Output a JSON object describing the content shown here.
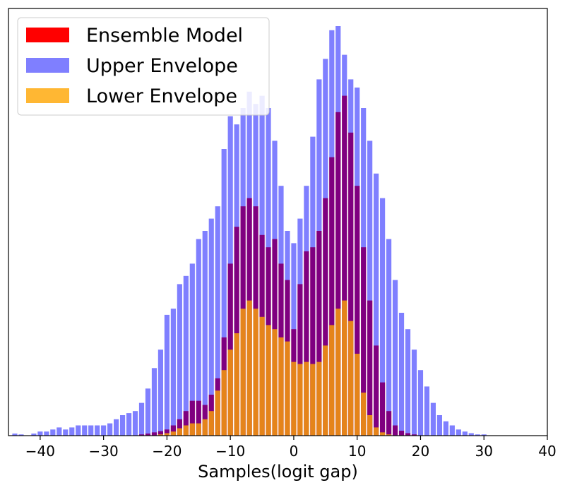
{
  "chart_data": {
    "type": "bar",
    "xlabel": "Samples(logit gap)",
    "ylabel": "",
    "xlim": [
      -45,
      40
    ],
    "ylim": [
      0,
      1000
    ],
    "xticks": [
      -40,
      -30,
      -20,
      -10,
      0,
      10,
      20,
      30,
      40
    ],
    "xtick_labels": [
      "−40",
      "−30",
      "−20",
      "−10",
      "0",
      "10",
      "20",
      "30",
      "40"
    ],
    "grid": false,
    "legend_position": "upper-left",
    "bin_width": 1,
    "x": [
      -44,
      -43,
      -42,
      -41,
      -40,
      -39,
      -38,
      -37,
      -36,
      -35,
      -34,
      -33,
      -32,
      -31,
      -30,
      -29,
      -28,
      -27,
      -26,
      -25,
      -24,
      -23,
      -22,
      -21,
      -20,
      -19,
      -18,
      -17,
      -16,
      -15,
      -14,
      -13,
      -12,
      -11,
      -10,
      -9,
      -8,
      -7,
      -6,
      -5,
      -4,
      -3,
      -2,
      -1,
      0,
      1,
      2,
      3,
      4,
      5,
      6,
      7,
      8,
      9,
      10,
      11,
      12,
      13,
      14,
      15,
      16,
      17,
      18,
      19,
      20,
      21,
      22,
      23,
      24,
      25,
      26,
      27,
      28,
      29,
      30
    ],
    "series": [
      {
        "name": "Ensemble Model",
        "color": "#ff0000",
        "opacity": 1.0,
        "values": [
          0,
          0,
          0,
          0,
          0,
          0,
          0,
          0,
          0,
          0,
          0,
          0,
          0,
          0,
          0,
          0,
          0,
          0,
          0,
          0,
          3,
          5,
          8,
          11,
          15,
          25,
          40,
          60,
          85,
          85,
          75,
          100,
          140,
          240,
          420,
          510,
          560,
          580,
          560,
          490,
          460,
          480,
          420,
          380,
          260,
          370,
          450,
          460,
          500,
          580,
          680,
          790,
          830,
          740,
          610,
          460,
          330,
          220,
          130,
          60,
          25,
          12,
          6,
          3,
          0,
          0,
          0,
          0,
          0,
          0,
          0,
          0,
          0,
          0,
          0
        ]
      },
      {
        "name": "Upper Envelope",
        "color": "#0000ff",
        "opacity": 0.5,
        "values": [
          5,
          3,
          0,
          5,
          10,
          10,
          15,
          20,
          15,
          20,
          25,
          25,
          25,
          25,
          25,
          30,
          40,
          50,
          55,
          60,
          80,
          115,
          165,
          210,
          295,
          310,
          370,
          390,
          420,
          480,
          500,
          530,
          560,
          700,
          780,
          760,
          800,
          840,
          810,
          830,
          800,
          720,
          610,
          500,
          470,
          530,
          610,
          730,
          870,
          920,
          990,
          1000,
          930,
          870,
          850,
          800,
          720,
          640,
          580,
          480,
          380,
          300,
          260,
          210,
          160,
          120,
          80,
          50,
          35,
          25,
          15,
          10,
          6,
          3,
          3
        ]
      },
      {
        "name": "Lower Envelope",
        "color": "#ffa500",
        "opacity": 0.8,
        "values": [
          0,
          0,
          0,
          0,
          0,
          0,
          0,
          0,
          0,
          0,
          0,
          0,
          0,
          0,
          0,
          0,
          0,
          0,
          0,
          0,
          0,
          0,
          0,
          3,
          6,
          10,
          18,
          25,
          30,
          30,
          40,
          60,
          110,
          160,
          210,
          250,
          310,
          330,
          310,
          290,
          270,
          260,
          240,
          230,
          180,
          175,
          180,
          175,
          180,
          220,
          270,
          310,
          330,
          280,
          200,
          105,
          50,
          20,
          8,
          3,
          0,
          0,
          0,
          0,
          0,
          0,
          0,
          0,
          0,
          0,
          0,
          0,
          0,
          0,
          0
        ]
      }
    ]
  }
}
